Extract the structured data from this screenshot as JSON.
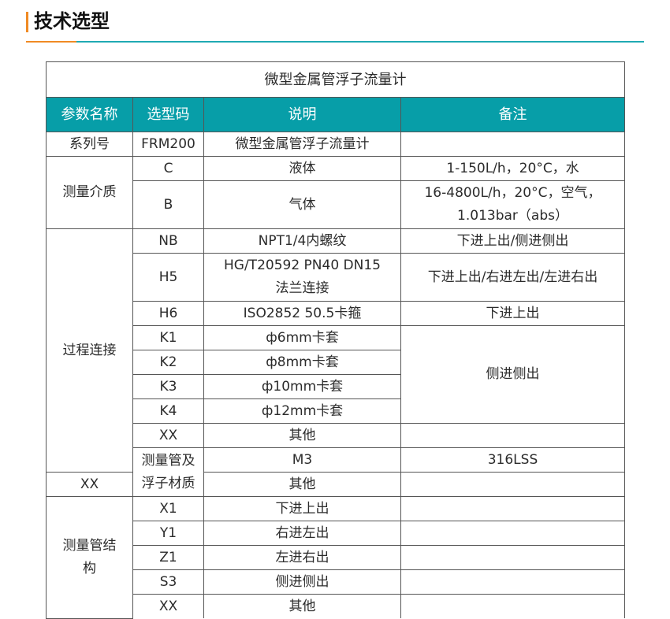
{
  "section_title": "技术选型",
  "colors": {
    "accent_orange": "#f08a24",
    "header_teal": "#079ea8"
  },
  "table": {
    "caption": "微型金属管浮子流量计",
    "headers": [
      "参数名称",
      "选型码",
      "说明",
      "备注"
    ],
    "groups": {
      "series": "系列号",
      "medium": "测量介质",
      "connection": "过程连接",
      "material": "测量管及浮子材质",
      "structure": "测量管结构"
    },
    "rows": [
      {
        "code": "FRM200",
        "desc": "微型金属管浮子流量计",
        "note": ""
      },
      {
        "code": "C",
        "desc": "液体",
        "note": "1-150L/h，20°C，水"
      },
      {
        "code": "B",
        "desc": "气体",
        "note": "16-4800L/h，20°C，空气，1.013bar（abs）"
      },
      {
        "code": "NB",
        "desc": "NPT1/4内螺纹",
        "note": "下进上出/侧进侧出"
      },
      {
        "code": "H5",
        "desc": "HG/T20592 PN40 DN15 法兰连接",
        "note": "下进上出/右进左出/左进右出"
      },
      {
        "code": "H6",
        "desc": "ISO2852 50.5卡箍",
        "note": "下进上出"
      },
      {
        "code": "K1",
        "desc": "ф6mm卡套",
        "note": "侧进侧出"
      },
      {
        "code": "K2",
        "desc": "ф8mm卡套"
      },
      {
        "code": "K3",
        "desc": "ф10mm卡套"
      },
      {
        "code": "K4",
        "desc": "ф12mm卡套"
      },
      {
        "code": "XX",
        "desc": "其他",
        "note": ""
      },
      {
        "code": "M3",
        "desc": "316LSS",
        "note": ""
      },
      {
        "code": "XX",
        "desc": "其他",
        "note": ""
      },
      {
        "code": "X1",
        "desc": "下进上出",
        "note": ""
      },
      {
        "code": "Y1",
        "desc": "右进左出",
        "note": ""
      },
      {
        "code": "Z1",
        "desc": "左进右出",
        "note": ""
      },
      {
        "code": "S3",
        "desc": "侧进侧出",
        "note": ""
      },
      {
        "code": "XX",
        "desc": "其他",
        "note": ""
      }
    ]
  }
}
